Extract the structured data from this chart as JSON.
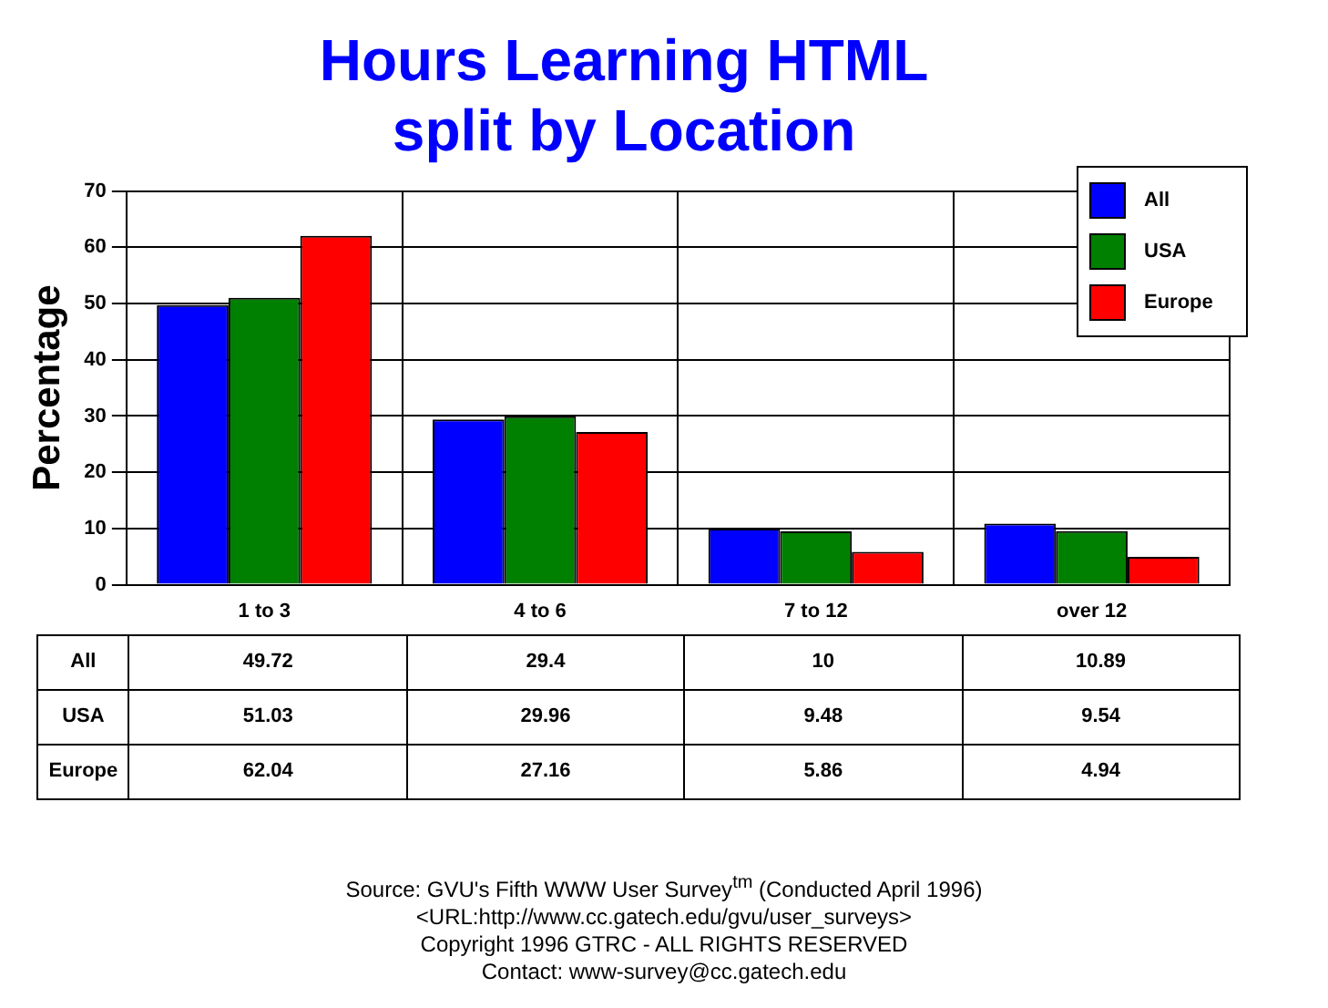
{
  "chart_data": {
    "type": "bar",
    "title": "Hours Learning HTML\nsplit by Location",
    "ylabel": "Percentage",
    "categories": [
      "1 to 3",
      "4 to 6",
      "7 to 12",
      "over 12"
    ],
    "series": [
      {
        "name": "All",
        "color": "#0000ff",
        "values": [
          49.72,
          29.4,
          10,
          10.89
        ]
      },
      {
        "name": "USA",
        "color": "#008000",
        "values": [
          51.03,
          29.96,
          9.48,
          9.54
        ]
      },
      {
        "name": "Europe",
        "color": "#ff0000",
        "values": [
          62.04,
          27.16,
          5.86,
          4.94
        ]
      }
    ],
    "ylim": [
      0,
      70
    ],
    "yticks": [
      0,
      10,
      20,
      30,
      40,
      50,
      60,
      70
    ],
    "grid": true,
    "legend": "top right",
    "data_labels": true,
    "annotations": [
      "Source: GVU's Fifth WWW User Survey$^{tm}$  (Conducted April 1996)",
      "<URL:http://www.cc.gatech.edu/gvu/user_surveys>",
      "Copyright 1996 GTRC -  ALL RIGHTS RESERVED",
      "Contact: www-survey@cc.gatech.edu"
    ]
  }
}
